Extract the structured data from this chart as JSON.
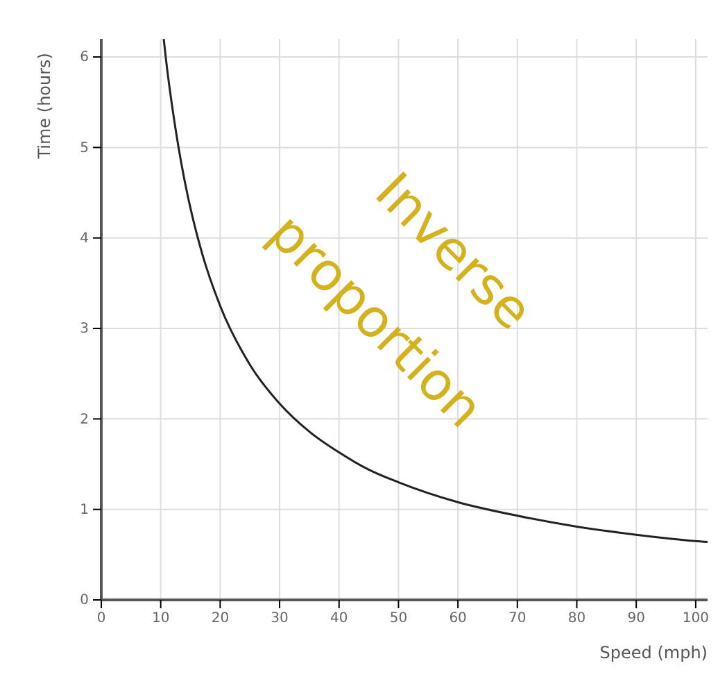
{
  "chart_data": {
    "type": "line",
    "xlabel": "Speed (mph)",
    "ylabel": "Time (hours)",
    "x": [
      10.5,
      11,
      12,
      13,
      14,
      15,
      17,
      20,
      25,
      30,
      35,
      40,
      45,
      50,
      60,
      70,
      80,
      90,
      100,
      102
    ],
    "series": [
      {
        "color": "#222222",
        "values": [
          6.2,
          5.91,
          5.42,
          5.0,
          4.64,
          4.33,
          3.82,
          3.25,
          2.6,
          2.17,
          1.86,
          1.63,
          1.44,
          1.3,
          1.08,
          0.93,
          0.81,
          0.72,
          0.65,
          0.64
        ]
      }
    ],
    "xlim": [
      0,
      102
    ],
    "ylim": [
      0,
      6.2
    ],
    "xticks": [
      0,
      10,
      20,
      30,
      40,
      50,
      60,
      70,
      80,
      90,
      100
    ],
    "yticks": [
      0,
      1,
      2,
      3,
      4,
      5,
      6
    ],
    "grid": true,
    "marker": "none",
    "line_style": "solid",
    "annotations": [
      "Inverse",
      "proportion"
    ]
  }
}
